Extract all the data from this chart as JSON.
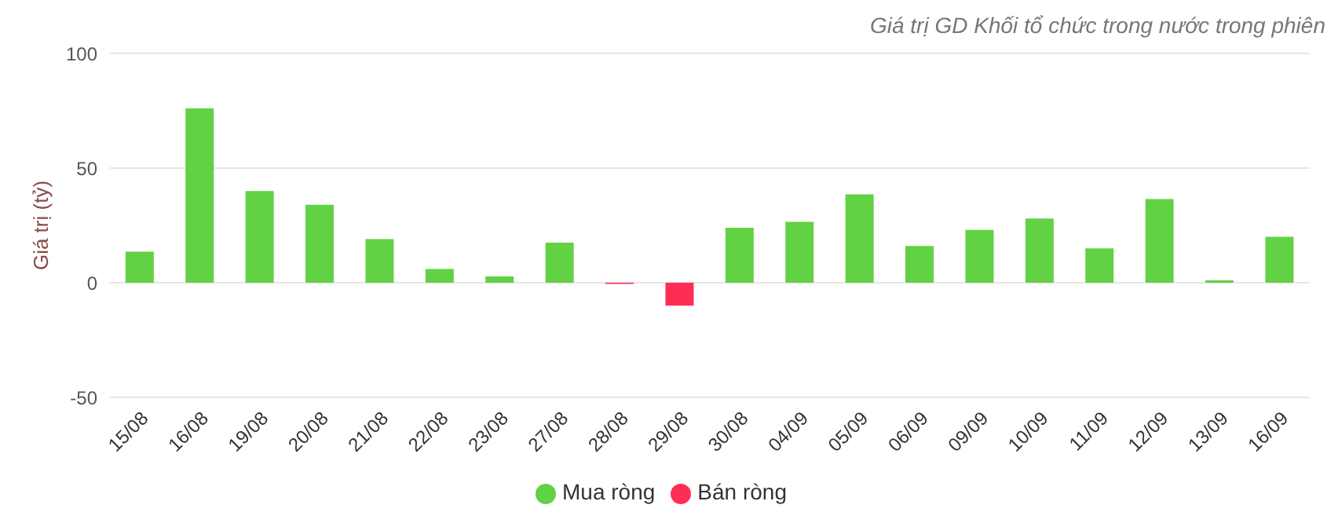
{
  "chart_data": {
    "type": "bar",
    "title": "Giá trị GD Khối tổ chức trong nước trong phiên",
    "ylabel": "Giá trị (tỷ)",
    "categories": [
      "15/08",
      "16/08",
      "19/08",
      "20/08",
      "21/08",
      "22/08",
      "23/08",
      "27/08",
      "28/08",
      "29/08",
      "30/08",
      "04/09",
      "05/09",
      "06/09",
      "09/09",
      "10/09",
      "11/09",
      "12/09",
      "13/09",
      "16/09"
    ],
    "series": [
      {
        "name": "Mua ròng",
        "color": "#61d243",
        "values": [
          13.5,
          76,
          40,
          34,
          19,
          6,
          2.7,
          17.5,
          null,
          null,
          24,
          26.5,
          38.5,
          16,
          23,
          28,
          15,
          36.5,
          1,
          20
        ]
      },
      {
        "name": "Bán ròng",
        "color": "#ff2d55",
        "values": [
          null,
          null,
          null,
          null,
          null,
          null,
          null,
          null,
          -0.5,
          -10,
          null,
          null,
          null,
          null,
          null,
          null,
          null,
          null,
          null,
          null
        ]
      }
    ],
    "stacked": true,
    "ylim": [
      -50,
      100
    ],
    "yticks": [
      -50,
      0,
      50,
      100
    ],
    "grid": "y",
    "legend": "bottom"
  }
}
